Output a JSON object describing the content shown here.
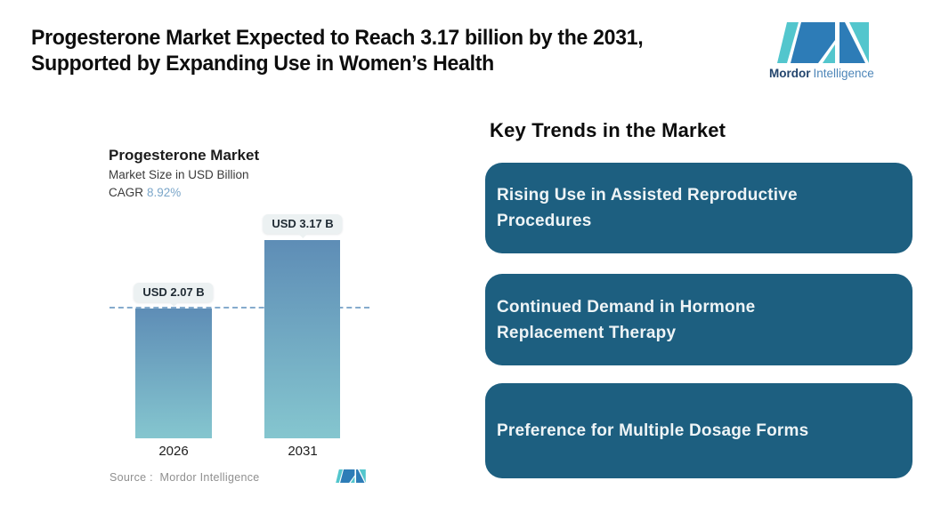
{
  "header": {
    "title_lines": [
      "Progesterone Market Expected to Reach 3.17 billion by the 2031,",
      "Supported by Expanding Use in Women’s Health"
    ]
  },
  "logo": {
    "brand_bold": "Mordor",
    "brand_light": "Intelligence",
    "teal": "#53c6cd",
    "blue": "#2d7cb7"
  },
  "chart": {
    "cagr_label": "CAGR",
    "source": "Source :  Mordor Intelligence"
  },
  "chart_data": {
    "type": "bar",
    "title": "Progesterone Market",
    "subtitle": "Market Size in USD Billion",
    "ylabel": "Market Size in USD Billion",
    "categories": [
      "2026",
      "2031"
    ],
    "values": [
      2.07,
      3.17
    ],
    "bar_labels": [
      "USD 2.07 B",
      "USD 3.17 B"
    ],
    "cagr": "8.92%",
    "cagr_color": "#7ba6c9",
    "reference_line": 2.07,
    "ylim": [
      0,
      3.6
    ],
    "grid": false,
    "bar_color_top": "#5e8db6",
    "bar_color_bottom": "#85c6cf",
    "reference_line_color": "#85abcd",
    "source": "Source :  Mordor Intelligence"
  },
  "trends": {
    "heading": "Key Trends in the Market",
    "card_bg": "#1d5f80",
    "cards": [
      {
        "label": "Rising Use in Assisted Reproductive Procedures",
        "lines": [
          "Rising Use in Assisted Reproductive",
          "Procedures"
        ]
      },
      {
        "label": "Continued Demand in Hormone Replacement Therapy",
        "lines": [
          "Continued Demand in Hormone",
          "Replacement Therapy"
        ]
      },
      {
        "label": "Preference for Multiple Dosage Forms",
        "lines": [
          "Preference for Multiple Dosage Forms"
        ]
      }
    ]
  }
}
